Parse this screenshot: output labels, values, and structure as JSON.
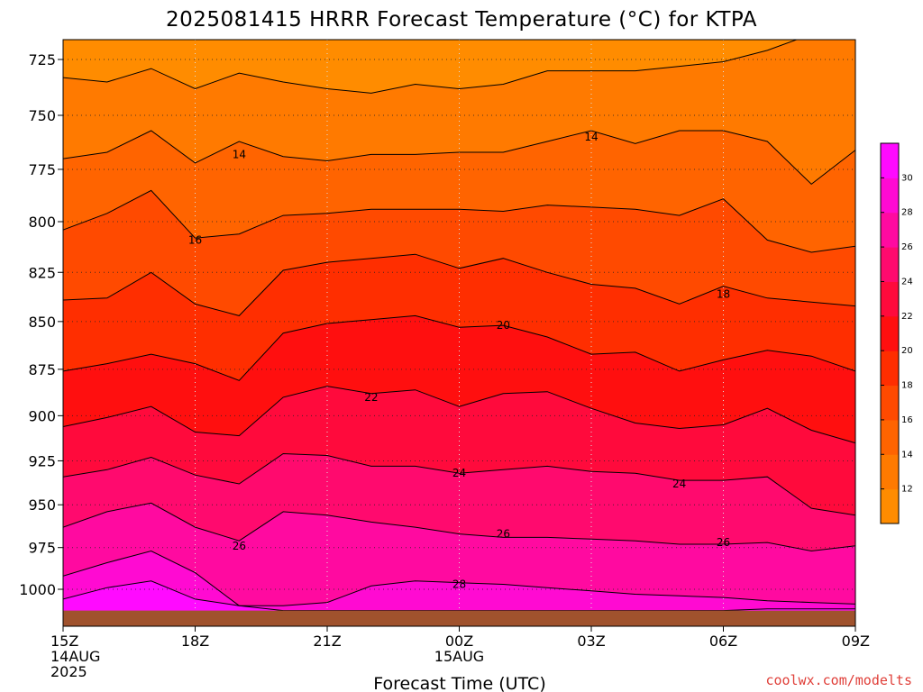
{
  "chart_data": {
    "type": "filled-contour",
    "title": "2025081415 HRRR Forecast Temperature (°C) for KTPA",
    "xlabel": "Forecast Time (UTC)",
    "ylabel": "",
    "credit": "coolwx.com/modelts",
    "y_scale": "pressure (hPa, decreasing upward)",
    "ylim": [
      1013,
      714
    ],
    "xlim": [
      "2025-08-14 15Z",
      "2025-08-15 09Z"
    ],
    "x_ticks": [
      {
        "hour": 0,
        "lines": [
          "15Z",
          "14AUG",
          "2025"
        ]
      },
      {
        "hour": 3,
        "lines": [
          "18Z"
        ]
      },
      {
        "hour": 6,
        "lines": [
          "21Z"
        ]
      },
      {
        "hour": 9,
        "lines": [
          "00Z",
          "15AUG"
        ]
      },
      {
        "hour": 12,
        "lines": [
          "03Z"
        ]
      },
      {
        "hour": 15,
        "lines": [
          "06Z"
        ]
      },
      {
        "hour": 18,
        "lines": [
          "09Z"
        ]
      }
    ],
    "y_ticks": [
      725,
      750,
      775,
      800,
      825,
      850,
      875,
      900,
      925,
      950,
      975,
      1000
    ],
    "grid": true,
    "hours": [
      0,
      1,
      2,
      3,
      4,
      5,
      6,
      7,
      8,
      9,
      10,
      11,
      12,
      13,
      14,
      15,
      16,
      17,
      18
    ],
    "isotherms": [
      {
        "temp": 12,
        "pressure": [
          733,
          735,
          729,
          738,
          731,
          735,
          738,
          740,
          736,
          738,
          736,
          730,
          730,
          730,
          728,
          726,
          721,
          714,
          714
        ]
      },
      {
        "temp": 14,
        "pressure": [
          770,
          767,
          757,
          772,
          762,
          769,
          771,
          768,
          768,
          767,
          767,
          762,
          757,
          763,
          757,
          757,
          762,
          782,
          766
        ]
      },
      {
        "temp": 16,
        "pressure": [
          804,
          796,
          785,
          808,
          806,
          797,
          796,
          794,
          794,
          794,
          795,
          792,
          793,
          794,
          797,
          789,
          809,
          815,
          812
        ]
      },
      {
        "temp": 18,
        "pressure": [
          839,
          838,
          825,
          841,
          847,
          824,
          820,
          818,
          816,
          823,
          818,
          825,
          831,
          833,
          841,
          832,
          838,
          840,
          842
        ]
      },
      {
        "temp": 20,
        "pressure": [
          876,
          872,
          867,
          872,
          881,
          856,
          851,
          849,
          847,
          853,
          852,
          858,
          867,
          866,
          876,
          870,
          865,
          868,
          876
        ]
      },
      {
        "temp": 22,
        "pressure": [
          906,
          901,
          895,
          909,
          911,
          890,
          884,
          888,
          886,
          895,
          888,
          887,
          896,
          904,
          907,
          905,
          896,
          908,
          915
        ]
      },
      {
        "temp": 24,
        "pressure": [
          934,
          930,
          923,
          933,
          938,
          921,
          922,
          928,
          928,
          932,
          930,
          928,
          931,
          932,
          936,
          936,
          934,
          952,
          956
        ]
      },
      {
        "temp": 26,
        "pressure": [
          963,
          954,
          949,
          963,
          971,
          954,
          956,
          960,
          963,
          967,
          969,
          969,
          970,
          971,
          973,
          973,
          972,
          977,
          974
        ]
      },
      {
        "temp": 28,
        "pressure": [
          992,
          984,
          977,
          990,
          1010,
          1010,
          1008,
          998,
          995,
          996,
          997,
          999,
          1001,
          1003,
          1004,
          1005,
          1007,
          1008,
          1009
        ]
      },
      {
        "temp": 30,
        "pressure": [
          1006,
          999,
          995,
          1006,
          1010,
          1013,
          1013,
          1013,
          1013,
          1013,
          1013,
          1013,
          1013,
          1013,
          1013,
          1013,
          1012,
          1012,
          1012
        ]
      }
    ],
    "contour_labels": [
      {
        "text": "14",
        "hour": 4.0,
        "pressure": 768
      },
      {
        "text": "14",
        "hour": 12.0,
        "pressure": 760
      },
      {
        "text": "16",
        "hour": 3.0,
        "pressure": 809
      },
      {
        "text": "18",
        "hour": 15.0,
        "pressure": 836
      },
      {
        "text": "20",
        "hour": 10.0,
        "pressure": 852
      },
      {
        "text": "22",
        "hour": 7.0,
        "pressure": 890
      },
      {
        "text": "24",
        "hour": 9.0,
        "pressure": 932
      },
      {
        "text": "24",
        "hour": 14.0,
        "pressure": 938
      },
      {
        "text": "26",
        "hour": 4.0,
        "pressure": 974
      },
      {
        "text": "26",
        "hour": 10.0,
        "pressure": 967
      },
      {
        "text": "26",
        "hour": 15.0,
        "pressure": 972
      },
      {
        "text": "28",
        "hour": 9.0,
        "pressure": 997
      }
    ],
    "surface_pressure": 1013,
    "colorbar": {
      "levels": [
        12,
        14,
        16,
        18,
        20,
        22,
        24,
        26,
        28,
        30
      ],
      "colors": [
        "#ff8c00",
        "#ff7a00",
        "#ff6400",
        "#ff4a00",
        "#ff2e00",
        "#ff0f0f",
        "#ff0a3c",
        "#ff0a6e",
        "#ff0aa0",
        "#ff0ad2",
        "#ff0aff"
      ]
    },
    "ground_color": "#a0522d"
  }
}
